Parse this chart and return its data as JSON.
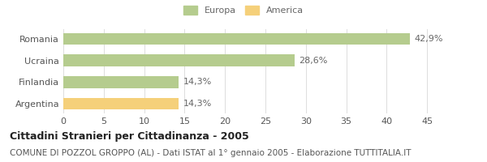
{
  "categories": [
    "Romania",
    "Ucraina",
    "Finlandia",
    "Argentina"
  ],
  "values": [
    42.9,
    28.6,
    14.3,
    14.3
  ],
  "labels": [
    "42,9%",
    "28,6%",
    "14,3%",
    "14,3%"
  ],
  "bar_colors": [
    "#b5cc8e",
    "#b5cc8e",
    "#b5cc8e",
    "#f5d07a"
  ],
  "legend_labels": [
    "Europa",
    "America"
  ],
  "legend_colors": [
    "#b5cc8e",
    "#f5d07a"
  ],
  "xlim": [
    0,
    47
  ],
  "xticks": [
    0,
    5,
    10,
    15,
    20,
    25,
    30,
    35,
    40,
    45
  ],
  "title": "Cittadini Stranieri per Cittadinanza - 2005",
  "subtitle": "COMUNE DI POZZOL GROPPO (AL) - Dati ISTAT al 1° gennaio 2005 - Elaborazione TUTTITALIA.IT",
  "background_color": "#ffffff",
  "bar_height": 0.55,
  "title_fontsize": 9,
  "subtitle_fontsize": 7.5,
  "tick_fontsize": 8,
  "label_fontsize": 8
}
